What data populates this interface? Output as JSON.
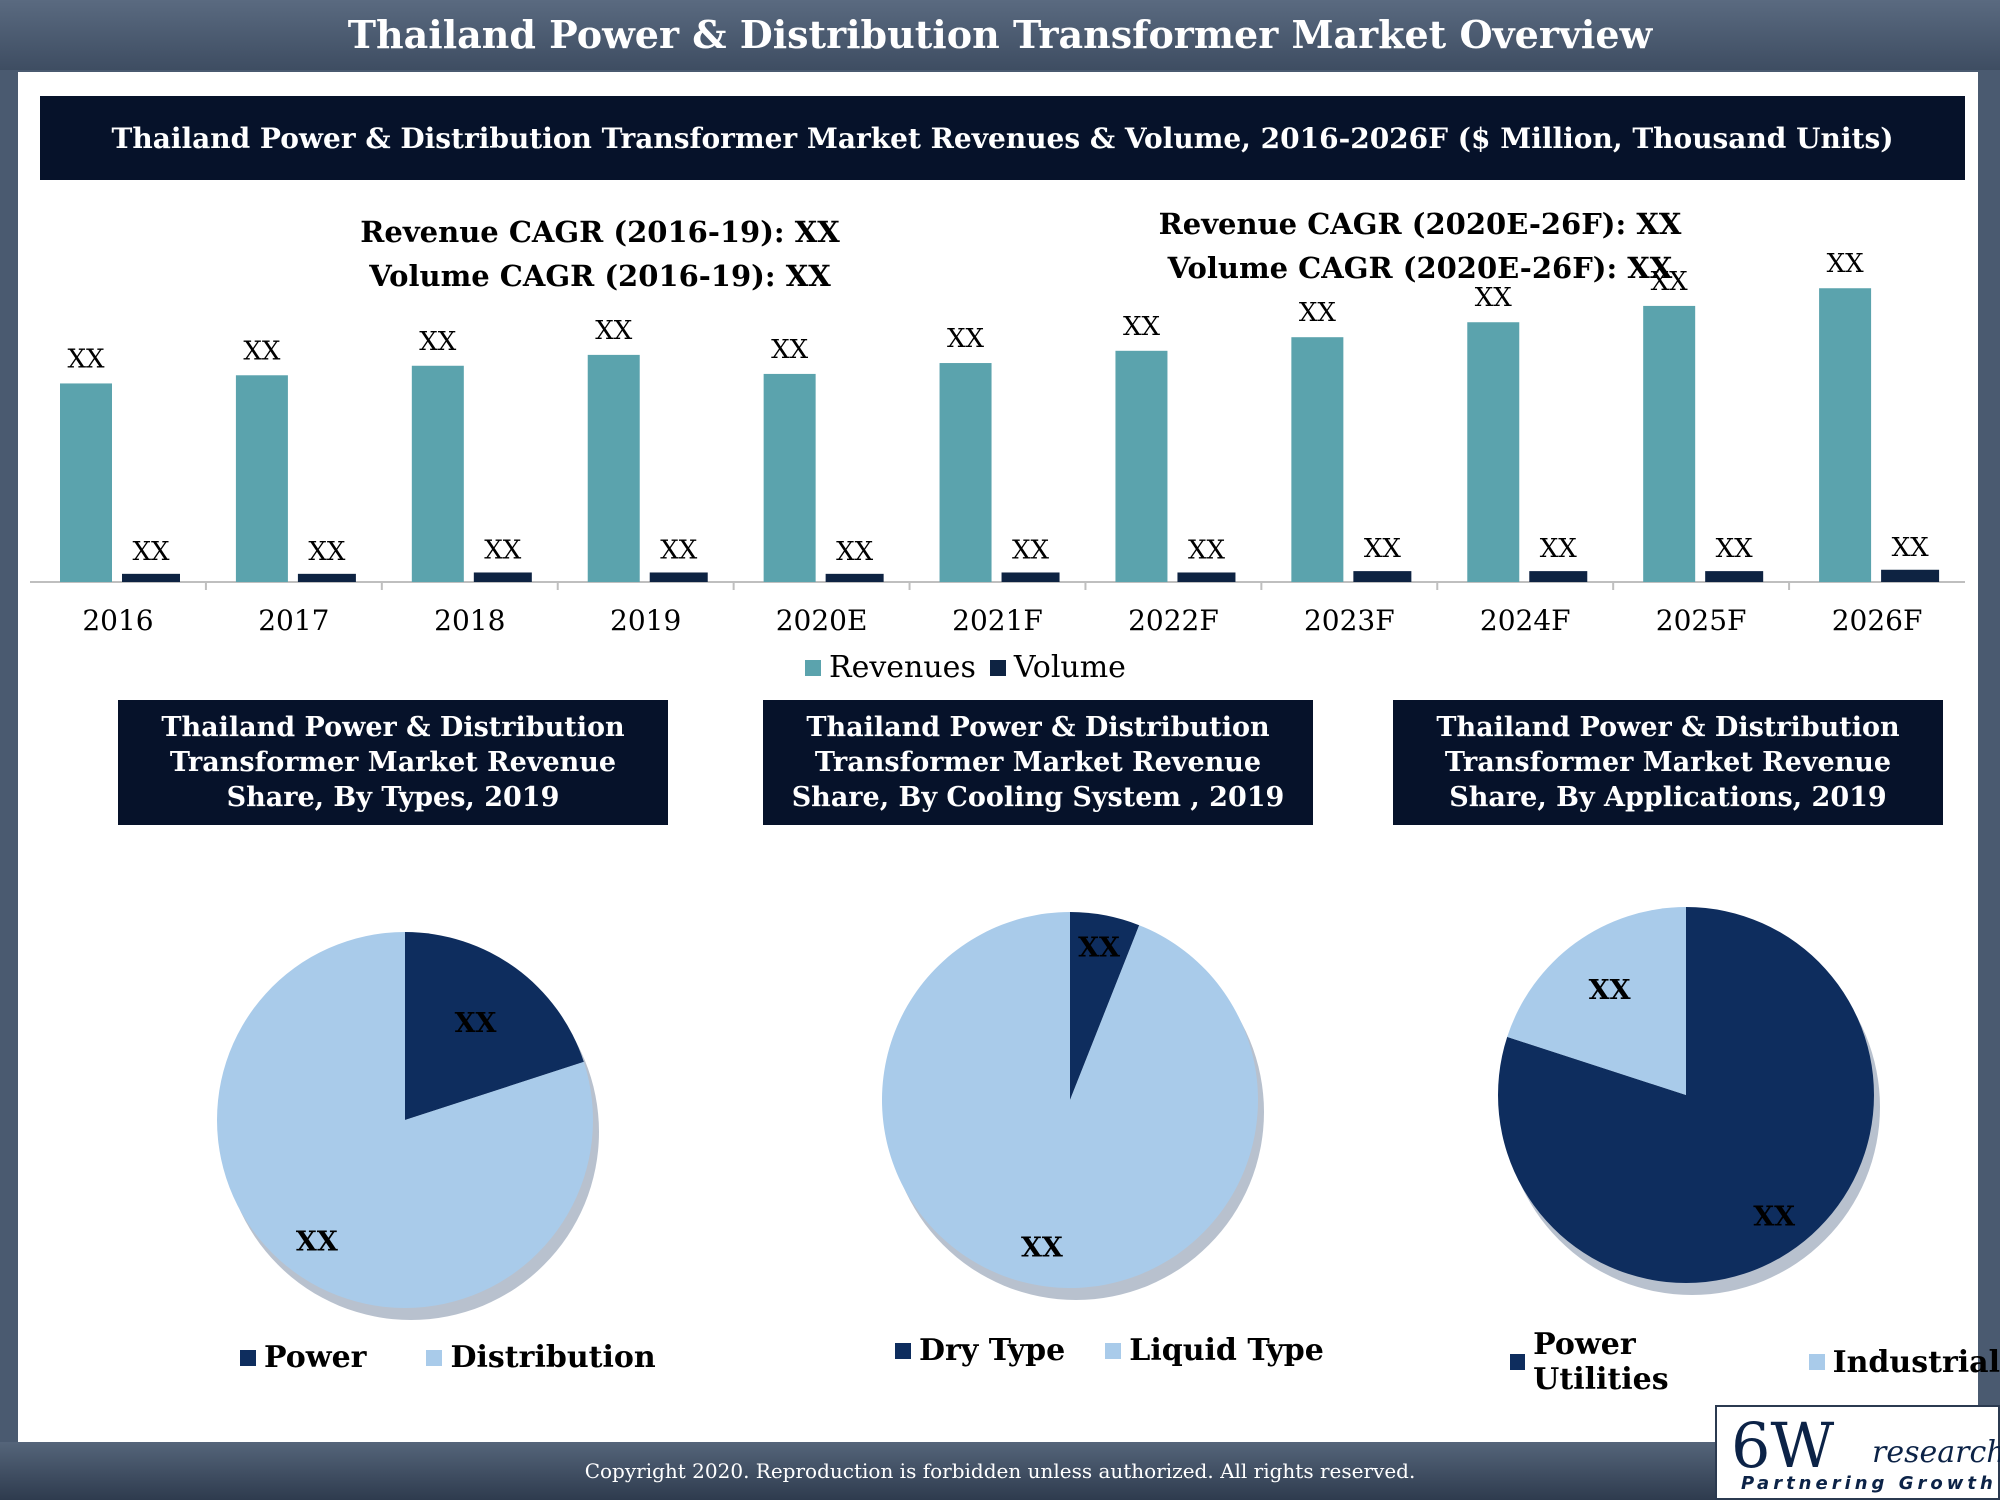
{
  "page": {
    "title": "Thailand Power & Distribution Transformer Market Overview",
    "copyright": "Copyright 2020. Reproduction is forbidden unless authorized. All rights reserved.",
    "logo": {
      "main": "6W",
      "sub": "research",
      "tagline": "Partnering Growth"
    }
  },
  "colors": {
    "revenues": "#5ba3ad",
    "volume": "#0e2342",
    "dark_slice": "#0e2d5e",
    "light_slice": "#a9cbea",
    "banner": "#06122a"
  },
  "main_banner": "Thailand Power & Distribution Transformer Market Revenues & Volume, 2016-2026F ($ Million, Thousand Units)",
  "cagr_left": {
    "line1": "Revenue CAGR (2016-19): XX",
    "line2": "Volume CAGR (2016-19): XX"
  },
  "cagr_right": {
    "line1": "Revenue CAGR (2020E-26F): XX",
    "line2": "Volume CAGR (2020E-26F): XX"
  },
  "chart_data": [
    {
      "type": "bar",
      "categories": [
        "2016",
        "2017",
        "2018",
        "2019",
        "2020E",
        "2021F",
        "2022F",
        "2023F",
        "2024F",
        "2025F",
        "2026F"
      ],
      "series": [
        {
          "name": "Revenues",
          "values": [
            146,
            152,
            159,
            167,
            153,
            161,
            170,
            180,
            191,
            203,
            216
          ],
          "labels": [
            "XX",
            "XX",
            "XX",
            "XX",
            "XX",
            "XX",
            "XX",
            "XX",
            "XX",
            "XX",
            "XX"
          ]
        },
        {
          "name": "Volume",
          "values": [
            6,
            6,
            7,
            7,
            6,
            7,
            7,
            8,
            8,
            8,
            9
          ],
          "labels": [
            "XX",
            "XX",
            "XX",
            "XX",
            "XX",
            "XX",
            "XX",
            "XX",
            "XX",
            "XX",
            "XX"
          ]
        }
      ],
      "ylim": [
        0,
        250
      ],
      "legend": [
        "Revenues",
        "Volume"
      ],
      "legend_position": "bottom"
    },
    {
      "type": "pie",
      "title": "Thailand Power & Distribution Transformer Market Revenue Share, By Types, 2019",
      "slices": [
        {
          "name": "Power",
          "value": 20,
          "label": "XX"
        },
        {
          "name": "Distribution",
          "value": 80,
          "label": "XX"
        }
      ]
    },
    {
      "type": "pie",
      "title": "Thailand Power & Distribution Transformer Market Revenue Share, By Cooling System , 2019",
      "slices": [
        {
          "name": "Dry Type",
          "value": 6,
          "label": "XX"
        },
        {
          "name": "Liquid Type",
          "value": 94,
          "label": "XX"
        }
      ]
    },
    {
      "type": "pie",
      "title": "Thailand Power & Distribution Transformer Market Revenue Share, By Applications, 2019",
      "slices": [
        {
          "name": "Power Utilities",
          "value": 80,
          "label": "XX"
        },
        {
          "name": "Industrial",
          "value": 20,
          "label": "XX"
        }
      ]
    }
  ]
}
